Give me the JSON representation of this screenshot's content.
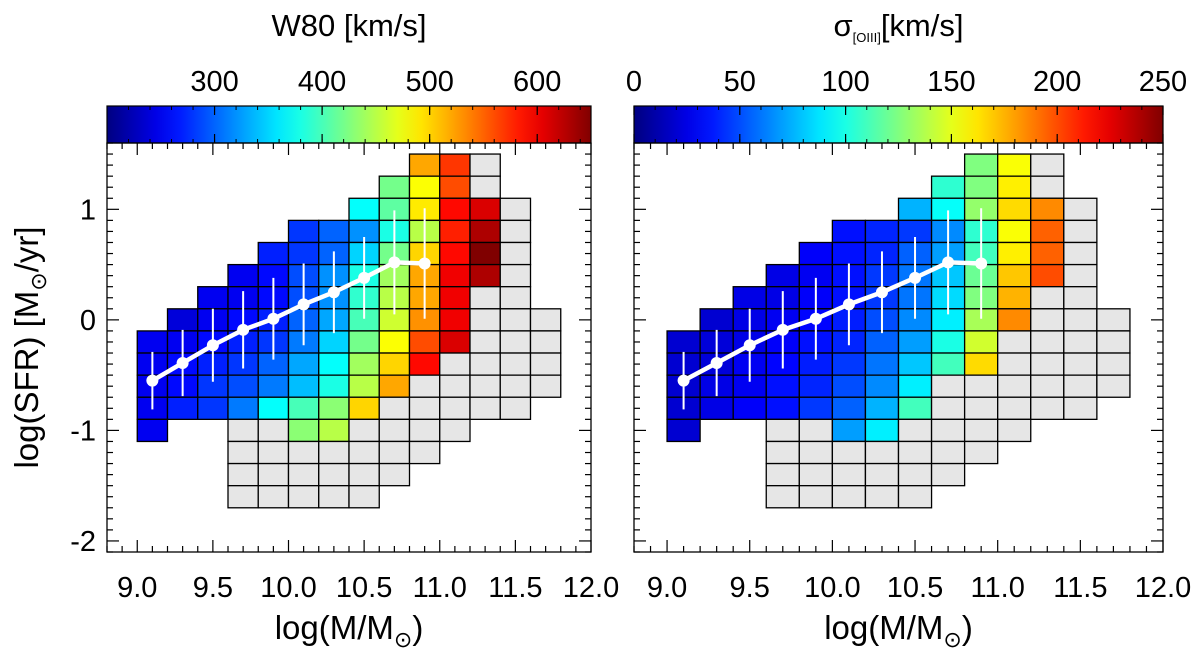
{
  "chart_data": [
    {
      "type": "heatmap",
      "title": "W80 [km/s]",
      "xlabel": "log(M/M⊙)",
      "ylabel": "log(SFR) [M⊙/yr]",
      "xlim": [
        8.8,
        12.0
      ],
      "ylim": [
        -2.1,
        1.6
      ],
      "x_ticks": [
        "9.0",
        "9.5",
        "10.0",
        "10.5",
        "11.0",
        "11.5",
        "12.0"
      ],
      "y_ticks": [
        "-2",
        "-1",
        "0",
        "1"
      ],
      "colorbar": {
        "label": "W80 [km/s]",
        "range": [
          200,
          650
        ],
        "ticks": [
          "300",
          "400",
          "500",
          "600"
        ],
        "tick_values": [
          300,
          400,
          500,
          600
        ]
      },
      "bin_size": {
        "x": 0.2,
        "y": 0.2
      },
      "x_bin_starts": [
        9.0,
        9.2,
        9.4,
        9.6,
        9.8,
        10.0,
        10.2,
        10.4,
        10.6,
        10.8,
        11.0,
        11.2,
        11.4,
        11.6
      ],
      "y_bin_starts": [
        1.3,
        1.1,
        0.9,
        0.7,
        0.5,
        0.3,
        0.1,
        -0.1,
        -0.3,
        -0.5,
        -0.7,
        -0.9,
        -1.1,
        -1.3,
        -1.5,
        -1.7
      ],
      "grid": [
        [
          null,
          null,
          null,
          null,
          null,
          null,
          null,
          null,
          null,
          520,
          570,
          "empty",
          null,
          null
        ],
        [
          null,
          null,
          null,
          null,
          null,
          null,
          null,
          null,
          420,
          480,
          560,
          "empty",
          null,
          null
        ],
        [
          null,
          null,
          null,
          null,
          null,
          null,
          null,
          370,
          410,
          490,
          590,
          610,
          "empty",
          null
        ],
        [
          null,
          null,
          null,
          null,
          null,
          280,
          300,
          320,
          380,
          450,
          580,
          630,
          "empty",
          null
        ],
        [
          null,
          null,
          null,
          null,
          270,
          280,
          300,
          350,
          420,
          500,
          590,
          650,
          "empty",
          null
        ],
        [
          null,
          null,
          null,
          250,
          260,
          290,
          320,
          380,
          440,
          520,
          600,
          630,
          "empty",
          null
        ],
        [
          null,
          null,
          250,
          250,
          260,
          290,
          320,
          390,
          450,
          520,
          600,
          "empty",
          "empty",
          null
        ],
        [
          null,
          240,
          250,
          260,
          270,
          300,
          330,
          400,
          460,
          530,
          600,
          "empty",
          "empty",
          "empty"
        ],
        [
          250,
          250,
          260,
          270,
          280,
          310,
          350,
          420,
          480,
          560,
          610,
          "empty",
          "empty",
          "empty"
        ],
        [
          250,
          260,
          270,
          280,
          300,
          330,
          370,
          440,
          500,
          590,
          "empty",
          "empty",
          "empty",
          "empty"
        ],
        [
          250,
          260,
          280,
          290,
          310,
          340,
          380,
          450,
          520,
          "empty",
          "empty",
          "empty",
          "empty",
          "empty"
        ],
        [
          250,
          270,
          280,
          310,
          370,
          400,
          430,
          500,
          "empty",
          "empty",
          "empty",
          "empty",
          "empty",
          null
        ],
        [
          250,
          null,
          null,
          "empty",
          "empty",
          430,
          450,
          "empty",
          "empty",
          "empty",
          "empty",
          null,
          null,
          null
        ],
        [
          null,
          null,
          null,
          "empty",
          "empty",
          "empty",
          "empty",
          "empty",
          "empty",
          "empty",
          null,
          null,
          null,
          null
        ],
        [
          null,
          null,
          null,
          "empty",
          "empty",
          "empty",
          "empty",
          "empty",
          "empty",
          null,
          null,
          null,
          null,
          null
        ],
        [
          null,
          null,
          null,
          "empty",
          "empty",
          "empty",
          "empty",
          "empty",
          null,
          null,
          null,
          null,
          null,
          null
        ]
      ],
      "median_line": {
        "x": [
          9.1,
          9.3,
          9.5,
          9.7,
          9.9,
          10.1,
          10.3,
          10.5,
          10.7,
          10.9
        ],
        "y": [
          -0.55,
          -0.39,
          -0.23,
          -0.09,
          0.01,
          0.14,
          0.25,
          0.38,
          0.52,
          0.51
        ],
        "err": [
          0.26,
          0.3,
          0.33,
          0.35,
          0.37,
          0.37,
          0.37,
          0.37,
          0.47,
          0.5
        ]
      }
    },
    {
      "type": "heatmap",
      "title": "σ[OIII][km/s]",
      "xlabel": "log(M/M⊙)",
      "ylabel": "",
      "xlim": [
        8.8,
        12.0
      ],
      "ylim": [
        -2.1,
        1.6
      ],
      "x_ticks": [
        "9.0",
        "9.5",
        "10.0",
        "10.5",
        "11.0",
        "11.5",
        "12.0"
      ],
      "y_ticks": [
        "-2",
        "-1",
        "0",
        "1"
      ],
      "colorbar": {
        "label": "σ[OIII][km/s]",
        "range": [
          0,
          250
        ],
        "ticks": [
          "0",
          "50",
          "100",
          "150",
          "200",
          "250"
        ],
        "tick_values": [
          0,
          50,
          100,
          150,
          200,
          250
        ]
      },
      "bin_size": {
        "x": 0.2,
        "y": 0.2
      },
      "x_bin_starts": [
        9.0,
        9.2,
        9.4,
        9.6,
        9.8,
        10.0,
        10.2,
        10.4,
        10.6,
        10.8,
        11.0,
        11.2,
        11.4,
        11.6
      ],
      "y_bin_starts": [
        1.3,
        1.1,
        0.9,
        0.7,
        0.5,
        0.3,
        0.1,
        -0.1,
        -0.3,
        -0.5,
        -0.7,
        -0.9,
        -1.1,
        -1.3,
        -1.5,
        -1.7
      ],
      "grid": [
        [
          null,
          null,
          null,
          null,
          null,
          null,
          null,
          null,
          null,
          125,
          155,
          "empty",
          null,
          null
        ],
        [
          null,
          null,
          null,
          null,
          null,
          null,
          null,
          null,
          105,
          125,
          160,
          "empty",
          null,
          null
        ],
        [
          null,
          null,
          null,
          null,
          null,
          null,
          null,
          75,
          95,
          130,
          165,
          185,
          "empty",
          null
        ],
        [
          null,
          null,
          null,
          null,
          null,
          35,
          40,
          45,
          65,
          105,
          155,
          195,
          "empty",
          null
        ],
        [
          null,
          null,
          null,
          null,
          30,
          35,
          40,
          55,
          70,
          110,
          160,
          195,
          "empty",
          null
        ],
        [
          null,
          null,
          null,
          25,
          28,
          35,
          45,
          60,
          80,
          120,
          170,
          200,
          "empty",
          null
        ],
        [
          null,
          null,
          25,
          25,
          30,
          35,
          45,
          60,
          85,
          125,
          175,
          "empty",
          "empty",
          null
        ],
        [
          null,
          20,
          25,
          28,
          32,
          38,
          50,
          65,
          90,
          135,
          185,
          "empty",
          "empty",
          "empty"
        ],
        [
          20,
          22,
          25,
          30,
          35,
          40,
          55,
          70,
          100,
          145,
          "empty",
          "empty",
          "empty",
          "empty"
        ],
        [
          20,
          22,
          28,
          32,
          38,
          45,
          60,
          80,
          110,
          165,
          "empty",
          "empty",
          "empty",
          "empty"
        ],
        [
          20,
          25,
          28,
          35,
          40,
          50,
          65,
          90,
          "empty",
          "empty",
          "empty",
          "empty",
          "empty",
          "empty"
        ],
        [
          20,
          25,
          30,
          35,
          45,
          55,
          75,
          110,
          "empty",
          "empty",
          "empty",
          "empty",
          "empty",
          null
        ],
        [
          20,
          null,
          null,
          "empty",
          "empty",
          70,
          90,
          "empty",
          "empty",
          "empty",
          "empty",
          null,
          null,
          null
        ],
        [
          null,
          null,
          null,
          "empty",
          "empty",
          "empty",
          "empty",
          "empty",
          "empty",
          "empty",
          null,
          null,
          null,
          null
        ],
        [
          null,
          null,
          null,
          "empty",
          "empty",
          "empty",
          "empty",
          "empty",
          "empty",
          null,
          null,
          null,
          null,
          null
        ],
        [
          null,
          null,
          null,
          "empty",
          "empty",
          "empty",
          "empty",
          "empty",
          null,
          null,
          null,
          null,
          null,
          null
        ]
      ],
      "median_line": {
        "x": [
          9.1,
          9.3,
          9.5,
          9.7,
          9.9,
          10.1,
          10.3,
          10.5,
          10.7,
          10.9
        ],
        "y": [
          -0.55,
          -0.39,
          -0.23,
          -0.09,
          0.01,
          0.14,
          0.25,
          0.38,
          0.52,
          0.51
        ],
        "err": [
          0.26,
          0.3,
          0.33,
          0.35,
          0.37,
          0.37,
          0.37,
          0.37,
          0.47,
          0.5
        ]
      }
    }
  ]
}
